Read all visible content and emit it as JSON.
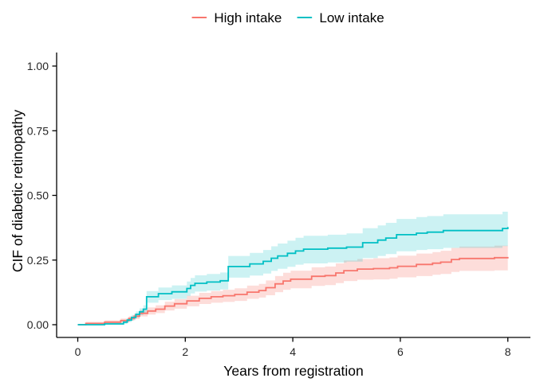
{
  "chart_data": {
    "type": "line",
    "subtype": "step-function-cumulative-incidence-with-confidence-bands",
    "title": "",
    "xlabel": "Years from registration",
    "ylabel": "CIF of diabetic retinopathy",
    "xlim": [
      0,
      8
    ],
    "ylim": [
      0,
      1.0
    ],
    "grid": false,
    "legend_position": "top-center",
    "x_ticks": [
      {
        "v": 0,
        "label": "0"
      },
      {
        "v": 2,
        "label": "2"
      },
      {
        "v": 4,
        "label": "4"
      },
      {
        "v": 6,
        "label": "6"
      },
      {
        "v": 8,
        "label": "8"
      }
    ],
    "y_ticks": [
      {
        "v": 0.0,
        "label": "0.00"
      },
      {
        "v": 0.25,
        "label": "0.25"
      },
      {
        "v": 0.5,
        "label": "0.50"
      },
      {
        "v": 0.75,
        "label": "0.75"
      },
      {
        "v": 1.0,
        "label": "1.00"
      }
    ],
    "axis_color": "#000000",
    "tick_label_color": "#262626",
    "series": [
      {
        "name": "High intake",
        "color": "#F8766D",
        "band_color": "rgba(248,118,109,0.25)",
        "points_format": [
          "years",
          "cif",
          "ci_lower",
          "ci_upper"
        ],
        "points": [
          [
            0.0,
            0.0,
            0.0,
            0.0
          ],
          [
            0.15,
            0.005,
            0.0,
            0.011
          ],
          [
            0.5,
            0.01,
            0.003,
            0.017
          ],
          [
            0.8,
            0.016,
            0.008,
            0.024
          ],
          [
            0.95,
            0.024,
            0.015,
            0.033
          ],
          [
            1.05,
            0.033,
            0.022,
            0.043
          ],
          [
            1.15,
            0.044,
            0.032,
            0.056
          ],
          [
            1.3,
            0.053,
            0.039,
            0.067
          ],
          [
            1.45,
            0.06,
            0.045,
            0.075
          ],
          [
            1.62,
            0.072,
            0.055,
            0.089
          ],
          [
            1.8,
            0.081,
            0.062,
            0.099
          ],
          [
            2.03,
            0.092,
            0.071,
            0.112
          ],
          [
            2.26,
            0.102,
            0.08,
            0.123
          ],
          [
            2.48,
            0.108,
            0.085,
            0.13
          ],
          [
            2.7,
            0.112,
            0.088,
            0.135
          ],
          [
            2.92,
            0.117,
            0.092,
            0.141
          ],
          [
            3.15,
            0.126,
            0.1,
            0.151
          ],
          [
            3.37,
            0.132,
            0.105,
            0.158
          ],
          [
            3.5,
            0.143,
            0.114,
            0.171
          ],
          [
            3.67,
            0.158,
            0.126,
            0.188
          ],
          [
            3.82,
            0.169,
            0.135,
            0.201
          ],
          [
            3.96,
            0.176,
            0.141,
            0.209
          ],
          [
            4.35,
            0.187,
            0.15,
            0.222
          ],
          [
            4.6,
            0.19,
            0.153,
            0.225
          ],
          [
            4.8,
            0.2,
            0.161,
            0.237
          ],
          [
            4.95,
            0.209,
            0.169,
            0.248
          ],
          [
            5.2,
            0.215,
            0.174,
            0.254
          ],
          [
            5.5,
            0.217,
            0.175,
            0.257
          ],
          [
            5.8,
            0.22,
            0.178,
            0.26
          ],
          [
            5.95,
            0.226,
            0.183,
            0.267
          ],
          [
            6.3,
            0.233,
            0.188,
            0.275
          ],
          [
            6.6,
            0.238,
            0.193,
            0.281
          ],
          [
            6.75,
            0.242,
            0.196,
            0.286
          ],
          [
            6.95,
            0.252,
            0.204,
            0.297
          ],
          [
            7.1,
            0.256,
            0.208,
            0.302
          ],
          [
            7.75,
            0.259,
            0.21,
            0.306
          ],
          [
            8.0,
            0.262,
            0.213,
            0.309
          ]
        ]
      },
      {
        "name": "Low intake",
        "color": "#00BFC4",
        "band_color": "rgba(0,191,196,0.20)",
        "points_format": [
          "years",
          "cif",
          "ci_lower",
          "ci_upper"
        ],
        "points": [
          [
            0.0,
            0.0,
            0.0,
            0.0
          ],
          [
            0.5,
            0.003,
            0.0,
            0.009
          ],
          [
            0.85,
            0.01,
            0.003,
            0.017
          ],
          [
            0.92,
            0.018,
            0.01,
            0.026
          ],
          [
            1.0,
            0.028,
            0.018,
            0.038
          ],
          [
            1.08,
            0.04,
            0.028,
            0.051
          ],
          [
            1.15,
            0.05,
            0.037,
            0.063
          ],
          [
            1.22,
            0.06,
            0.045,
            0.075
          ],
          [
            1.28,
            0.108,
            0.085,
            0.13
          ],
          [
            1.5,
            0.12,
            0.095,
            0.144
          ],
          [
            1.75,
            0.127,
            0.1,
            0.152
          ],
          [
            2.03,
            0.14,
            0.111,
            0.167
          ],
          [
            2.1,
            0.152,
            0.121,
            0.181
          ],
          [
            2.18,
            0.16,
            0.128,
            0.191
          ],
          [
            2.4,
            0.165,
            0.132,
            0.196
          ],
          [
            2.65,
            0.17,
            0.136,
            0.202
          ],
          [
            2.8,
            0.225,
            0.182,
            0.266
          ],
          [
            3.2,
            0.235,
            0.19,
            0.278
          ],
          [
            3.45,
            0.245,
            0.198,
            0.289
          ],
          [
            3.6,
            0.257,
            0.208,
            0.303
          ],
          [
            3.72,
            0.266,
            0.216,
            0.314
          ],
          [
            3.9,
            0.276,
            0.224,
            0.325
          ],
          [
            4.05,
            0.285,
            0.232,
            0.336
          ],
          [
            4.2,
            0.292,
            0.237,
            0.344
          ],
          [
            4.65,
            0.296,
            0.241,
            0.348
          ],
          [
            5.0,
            0.3,
            0.244,
            0.353
          ],
          [
            5.3,
            0.317,
            0.258,
            0.373
          ],
          [
            5.58,
            0.327,
            0.266,
            0.384
          ],
          [
            5.73,
            0.335,
            0.273,
            0.394
          ],
          [
            5.93,
            0.348,
            0.284,
            0.409
          ],
          [
            6.3,
            0.354,
            0.289,
            0.416
          ],
          [
            6.5,
            0.358,
            0.292,
            0.42
          ],
          [
            6.8,
            0.364,
            0.297,
            0.427
          ],
          [
            7.9,
            0.372,
            0.304,
            0.437
          ],
          [
            8.0,
            0.378,
            0.309,
            0.444
          ]
        ]
      }
    ]
  }
}
